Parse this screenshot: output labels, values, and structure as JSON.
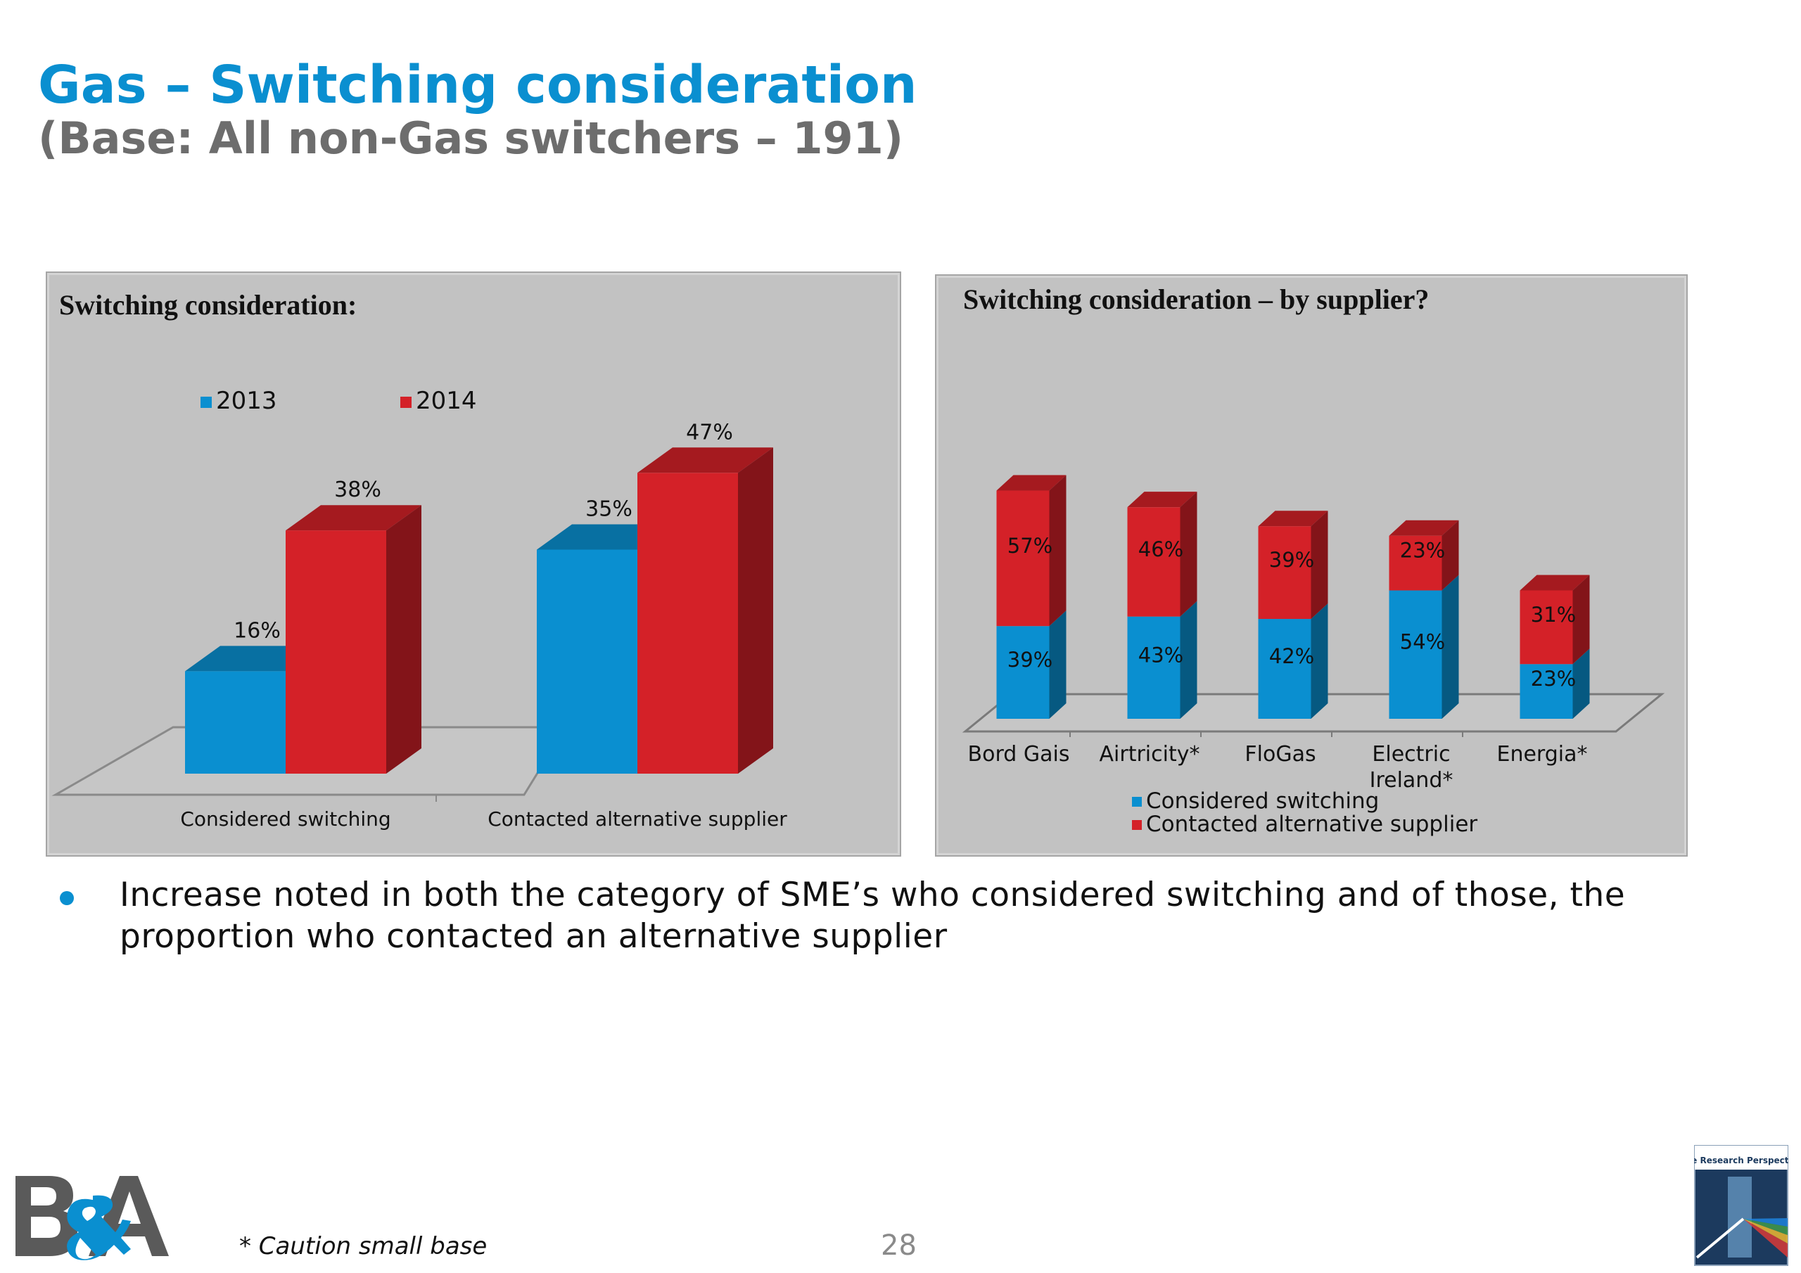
{
  "title": "Gas – Switching consideration",
  "subtitle": "(Base: All non-Gas switchers – 191)",
  "colors": {
    "blue": "#0a8fd0",
    "red": "#d42128",
    "title_blue": "#0a8fd0",
    "panel_bg": "#c2c2c2"
  },
  "chart_data": [
    {
      "type": "bar",
      "title": "Switching consideration:",
      "categories": [
        "Considered switching",
        "Contacted alternative supplier"
      ],
      "series": [
        {
          "name": "2013",
          "values": [
            16,
            35
          ],
          "labels": [
            "16%",
            "35%"
          ]
        },
        {
          "name": "2014",
          "values": [
            38,
            47
          ],
          "labels": [
            "38%",
            "47%"
          ]
        }
      ],
      "legend": "top-left",
      "ylim": [
        0,
        50
      ]
    },
    {
      "type": "bar",
      "stacked": true,
      "title": "Switching consideration – by supplier?",
      "categories": [
        "Bord Gais",
        "Airtricity*",
        "FloGas",
        "Electric Ireland*",
        "Energia*"
      ],
      "series": [
        {
          "name": "Considered switching",
          "values": [
            39,
            43,
            42,
            54,
            23
          ],
          "labels": [
            "39%",
            "43%",
            "42%",
            "54%",
            "23%"
          ]
        },
        {
          "name": "Contacted alternative supplier",
          "values": [
            57,
            46,
            39,
            23,
            31
          ],
          "labels": [
            "57%",
            "46%",
            "39%",
            "23%",
            "31%"
          ]
        }
      ],
      "legend": "bottom",
      "ylim": [
        0,
        100
      ]
    }
  ],
  "bullet": "Increase noted in both the category of SME’s who considered switching and of those, the proportion who contacted an alternative supplier",
  "footer": {
    "caution": "* Caution small base",
    "page_number": "28"
  },
  "logos": {
    "left_text": "B&A",
    "right_text": "The Research Perspective"
  }
}
